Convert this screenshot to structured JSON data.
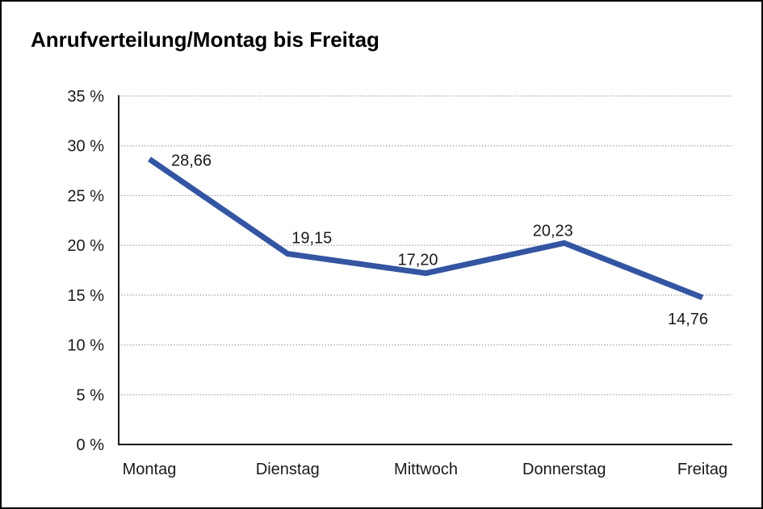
{
  "title": "Anrufverteilung/Montag bis Freitag",
  "chart_data": {
    "type": "line",
    "title": "Anrufverteilung/Montag bis Freitag",
    "categories": [
      "Montag",
      "Dienstag",
      "Mittwoch",
      "Donnerstag",
      "Freitag"
    ],
    "series": [
      {
        "name": "Anrufverteilung",
        "values": [
          28.66,
          19.15,
          17.2,
          20.23,
          14.76
        ],
        "data_labels": [
          "28,66",
          "19,15",
          "17,20",
          "20,23",
          "14,76"
        ]
      }
    ],
    "xlabel": "",
    "ylabel": "",
    "ylim": [
      0,
      35
    ],
    "y_tick_values": [
      0,
      5,
      10,
      15,
      20,
      25,
      30,
      35
    ],
    "y_tick_labels": [
      "0 %",
      "5 %",
      "10 %",
      "15 %",
      "20 %",
      "25 %",
      "30 %",
      "35 %"
    ],
    "grid": "horizontal-dotted",
    "legend_position": "none",
    "colors": {
      "line": "#3355A2",
      "gridline": "#8c8c8c",
      "axis": "#1a1a1a",
      "text": "#1a1a1a",
      "background": "#ffffff",
      "frame_border": "#000000"
    }
  }
}
